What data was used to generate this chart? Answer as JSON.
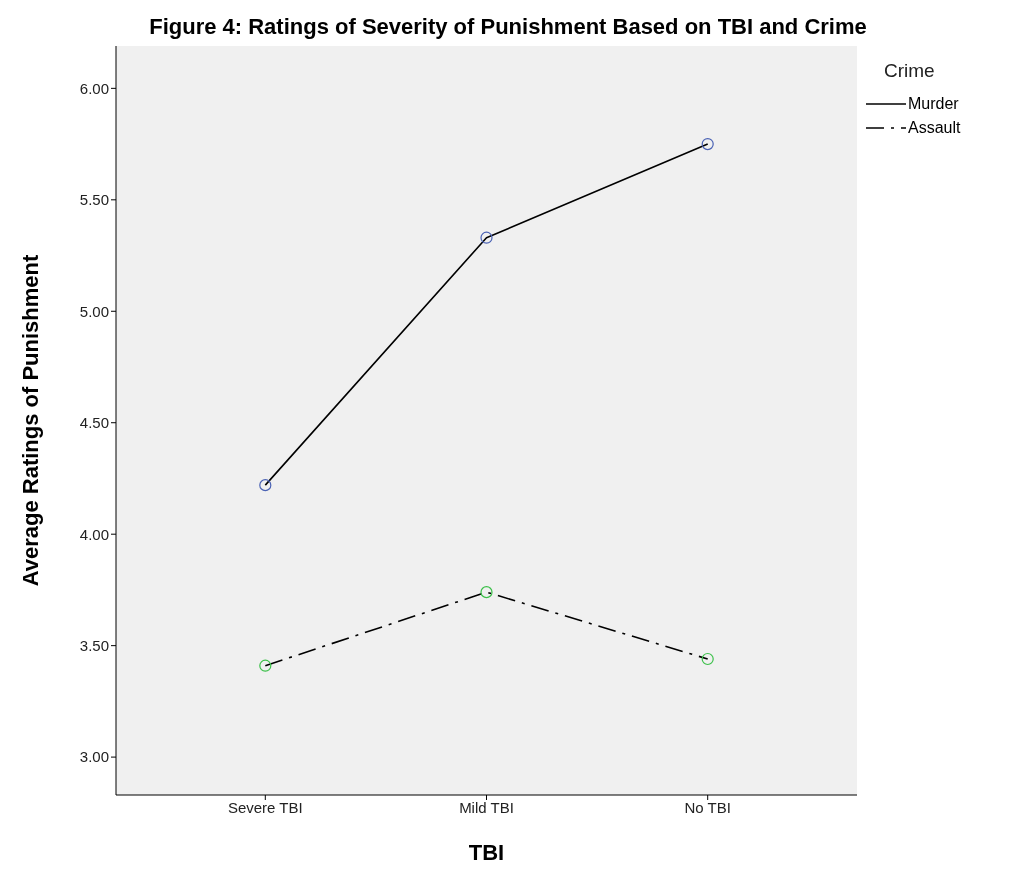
{
  "chart_data": {
    "type": "line",
    "title": "Figure 4: Ratings of Severity of Punishment Based on TBI and Crime",
    "xlabel": "TBI",
    "ylabel": "Average Ratings of Punishment",
    "legend_title": "Crime",
    "categories": [
      "Severe TBI",
      "Mild TBI",
      "No TBI"
    ],
    "series": [
      {
        "name": "Murder",
        "color": "#000000",
        "colors": [
          "#4a62b4",
          "#4a62b4",
          "#4a62b4"
        ],
        "line_style": "solid",
        "values": [
          4.22,
          5.33,
          5.75
        ]
      },
      {
        "name": "Assault",
        "color": "#000000",
        "colors": [
          "#3cc04a",
          "#3cc04a",
          "#3cc04a"
        ],
        "line_style": "dashdot",
        "values": [
          3.41,
          3.74,
          3.44
        ]
      }
    ],
    "ylim": [
      2.83,
      6.19
    ],
    "yticks": [
      {
        "value": 3,
        "label": "3.00"
      },
      {
        "value": 3.5,
        "label": "3.50"
      },
      {
        "value": 4,
        "label": "4.00"
      },
      {
        "value": 4.5,
        "label": "4.50"
      },
      {
        "value": 5,
        "label": "5.00"
      },
      {
        "value": 5.5,
        "label": "5.50"
      },
      {
        "value": 6,
        "label": "6.00"
      }
    ],
    "marker": "circle",
    "legend": "top right",
    "grid": false
  }
}
